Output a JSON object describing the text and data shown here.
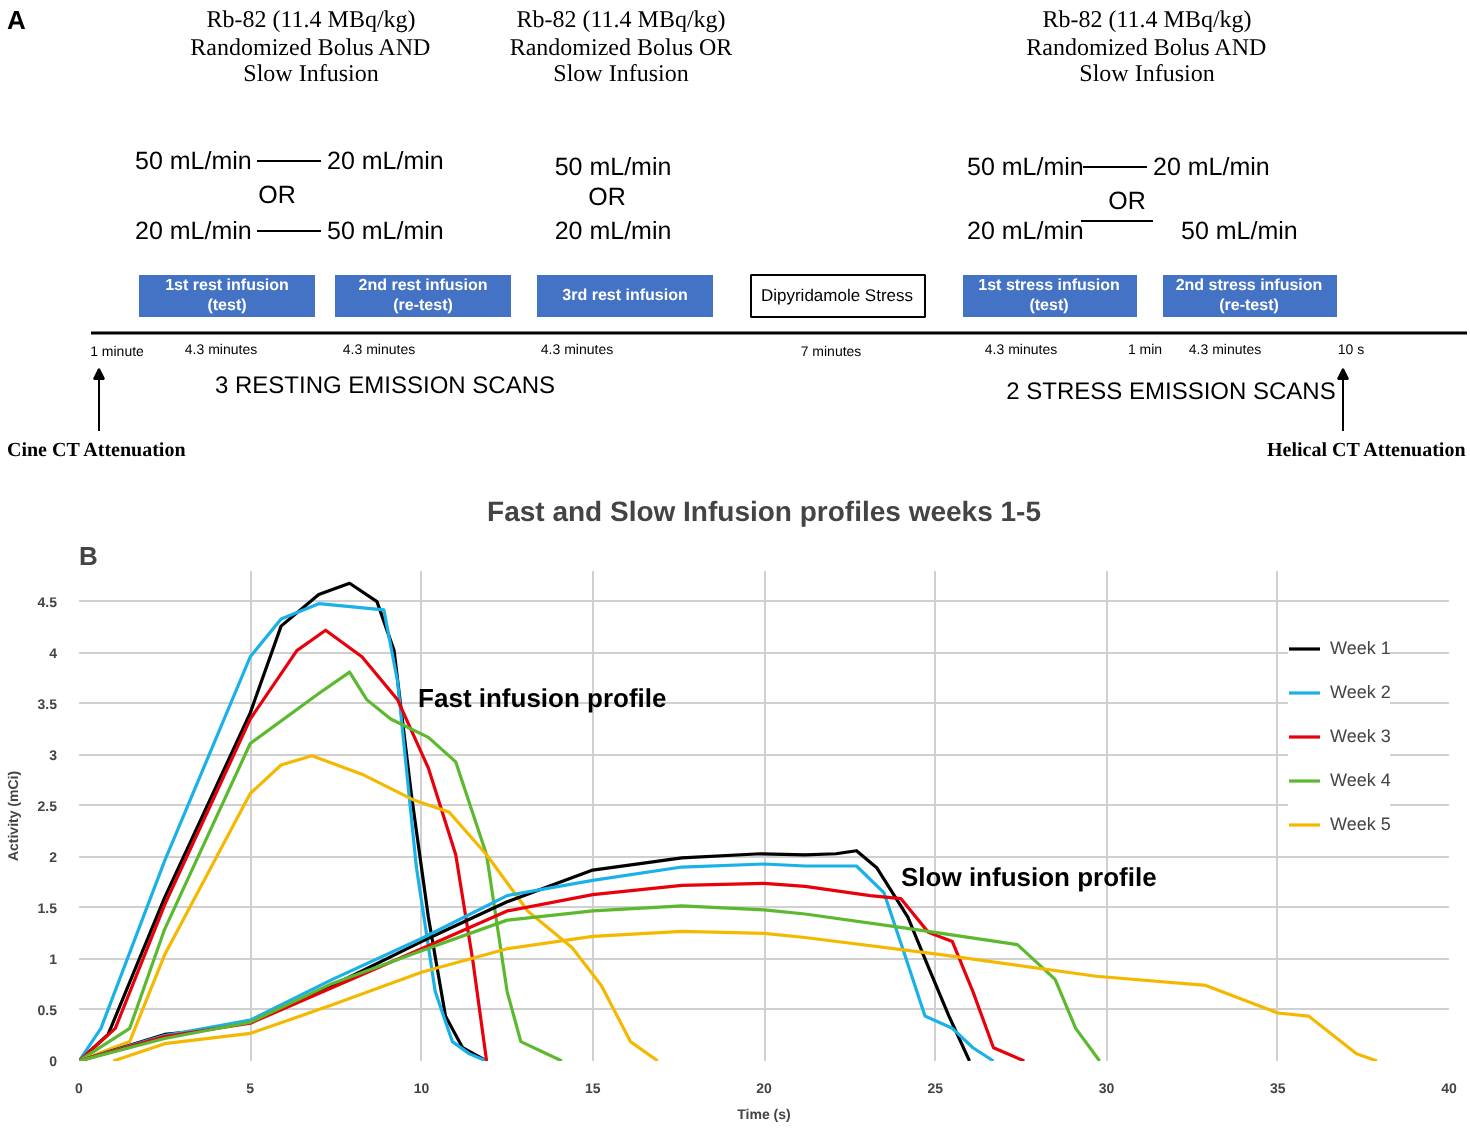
{
  "chart_data": [
    {
      "type": "other",
      "title": "A",
      "annotations": [
        "Rb-82 (11.4 MBq/kg)",
        "Randomized Bolus AND",
        "Slow Infusion",
        "Rb-82 (11.4 MBq/kg)",
        "Randomized Bolus OR",
        "Slow Infusion",
        "Rb-82 (11.4 MBq/kg)",
        "Randomized Bolus AND",
        "Slow Infusion",
        "50 mL/min",
        "20 mL/min",
        "OR",
        "20 mL/min",
        "50 mL/min",
        "50 mL/min",
        "OR",
        "20 mL/min",
        "50 mL/min",
        "20 mL/min",
        "OR",
        "20 mL/min",
        "50 mL/min",
        "1st rest infusion",
        "(test)",
        "2nd rest infusion",
        "(re-test)",
        "3rd rest infusion",
        "Dipyridamole Stress",
        "1st stress infusion",
        "(test)",
        "2nd stress infusion",
        "(re-test)",
        "1 minute",
        "4.3 minutes",
        "4.3 minutes",
        "4.3 minutes",
        "7 minutes",
        "4.3 minutes",
        "1 min",
        "4.3 minutes",
        "10 s",
        "3 RESTING EMISSION SCANS",
        "2 STRESS EMISSION SCANS",
        "Cine CT Attenuation",
        "Helical CT Attenuation"
      ]
    },
    {
      "type": "line",
      "title": "Fast and Slow Infusion profiles weeks 1-5",
      "xlabel": "Time (s)",
      "ylabel": "Activity (mCi)",
      "xlim": [
        0,
        40
      ],
      "ylim": [
        0,
        4.8
      ],
      "xticks": [
        0,
        5,
        10,
        15,
        20,
        25,
        30,
        35,
        40
      ],
      "yticks": [
        0,
        0.5,
        1,
        1.5,
        2,
        2.5,
        3,
        3.5,
        4,
        4.5
      ],
      "grid": true,
      "legend": "right",
      "marker": "none",
      "line_style": "solid",
      "annotations": [
        "B",
        "Fast infusion profile",
        "Slow infusion profile"
      ],
      "series": [
        {
          "name": "Week 1",
          "color": "#000000",
          "x": [
            0,
            0.85,
            2.5,
            5,
            5.9,
            7,
            7.9,
            8.7,
            9.2,
            9.7,
            10.2,
            10.7,
            11.2,
            11.9
          ],
          "values": [
            0,
            0.26,
            1.6,
            3.41,
            4.26,
            4.57,
            4.68,
            4.5,
            4.02,
            2.62,
            1.41,
            0.44,
            0.13,
            0
          ]
        },
        {
          "name": "Week 2",
          "color": "#1ab0e8",
          "x": [
            0,
            0.64,
            2.5,
            5,
            5.9,
            7,
            8.9,
            9.3,
            9.85,
            10.4,
            10.9,
            11.4,
            11.9
          ],
          "values": [
            0,
            0.32,
            1.96,
            3.96,
            4.33,
            4.48,
            4.42,
            3.72,
            1.9,
            0.68,
            0.19,
            0.07,
            0
          ]
        },
        {
          "name": "Week 3",
          "color": "#e8000b",
          "x": [
            0,
            1.06,
            2.5,
            5,
            6.36,
            7.2,
            8.26,
            9.3,
            10.2,
            11,
            11.5,
            11.9
          ],
          "values": [
            0,
            0.32,
            1.53,
            3.35,
            4.02,
            4.22,
            3.96,
            3.54,
            2.87,
            2.02,
            0.98,
            0
          ]
        },
        {
          "name": "Week 4",
          "color": "#5cb82e",
          "x": [
            0,
            1.48,
            2.5,
            5,
            7,
            7.9,
            8.4,
            9.1,
            10.2,
            11,
            11.9,
            12.5,
            12.9,
            14.1
          ],
          "values": [
            0,
            0.32,
            1.29,
            3.11,
            3.6,
            3.81,
            3.54,
            3.35,
            3.17,
            2.93,
            2.02,
            0.68,
            0.19,
            0
          ]
        },
        {
          "name": "Week 5",
          "color": "#f5b800",
          "x": [
            0,
            1.48,
            2.5,
            5,
            5.9,
            6.8,
            8.26,
            9.75,
            10.8,
            11.9,
            13.1,
            14.4,
            15.25,
            16.1,
            16.9
          ],
          "values": [
            0,
            0.19,
            1.04,
            2.62,
            2.9,
            2.99,
            2.81,
            2.56,
            2.44,
            2.02,
            1.47,
            1.11,
            0.74,
            0.19,
            0
          ]
        },
        {
          "color": "#000000",
          "x": [
            0,
            2.5,
            3.4,
            5,
            7.4,
            10,
            12.5,
            15,
            17.6,
            19.9,
            21.2,
            22.1,
            22.7,
            23.3,
            24.2,
            24.8,
            25.4,
            26.0
          ],
          "values": [
            0,
            0.26,
            0.29,
            0.38,
            0.74,
            1.17,
            1.56,
            1.87,
            1.99,
            2.03,
            2.02,
            2.03,
            2.06,
            1.89,
            1.41,
            0.92,
            0.44,
            0
          ]
        },
        {
          "color": "#1ab0e8",
          "x": [
            0,
            2.5,
            5,
            7.4,
            10,
            12.5,
            15,
            17.6,
            20,
            21.2,
            22.7,
            23.5,
            24.1,
            24.7,
            25.5,
            26.1,
            26.7
          ],
          "values": [
            0,
            0.25,
            0.4,
            0.8,
            1.2,
            1.62,
            1.77,
            1.9,
            1.93,
            1.91,
            1.91,
            1.65,
            1.05,
            0.44,
            0.32,
            0.13,
            0
          ]
        },
        {
          "color": "#e8000b",
          "x": [
            0,
            2.5,
            5,
            7.4,
            10,
            12.5,
            15,
            17.6,
            20,
            21.2,
            23.1,
            24,
            24.8,
            25.5,
            26.1,
            26.7,
            27.6
          ],
          "values": [
            0,
            0.24,
            0.37,
            0.72,
            1.1,
            1.47,
            1.63,
            1.72,
            1.74,
            1.71,
            1.62,
            1.59,
            1.26,
            1.17,
            0.68,
            0.13,
            0
          ]
        },
        {
          "color": "#5cb82e",
          "x": [
            0,
            2.5,
            5,
            7.4,
            10,
            12.5,
            15,
            17.6,
            20,
            21.2,
            24.4,
            27.4,
            28.5,
            29.1,
            29.8
          ],
          "values": [
            0,
            0.22,
            0.38,
            0.76,
            1.08,
            1.38,
            1.47,
            1.52,
            1.48,
            1.44,
            1.29,
            1.14,
            0.8,
            0.32,
            0
          ]
        },
        {
          "color": "#f5b800",
          "x": [
            1,
            2.5,
            5,
            7.4,
            10,
            12.5,
            15,
            17.6,
            20,
            21.2,
            25,
            29.7,
            32.9,
            35,
            35.9,
            37.3,
            37.9
          ],
          "values": [
            0,
            0.17,
            0.27,
            0.55,
            0.87,
            1.1,
            1.22,
            1.27,
            1.25,
            1.21,
            1.05,
            0.83,
            0.74,
            0.47,
            0.44,
            0.07,
            0
          ]
        }
      ]
    }
  ]
}
